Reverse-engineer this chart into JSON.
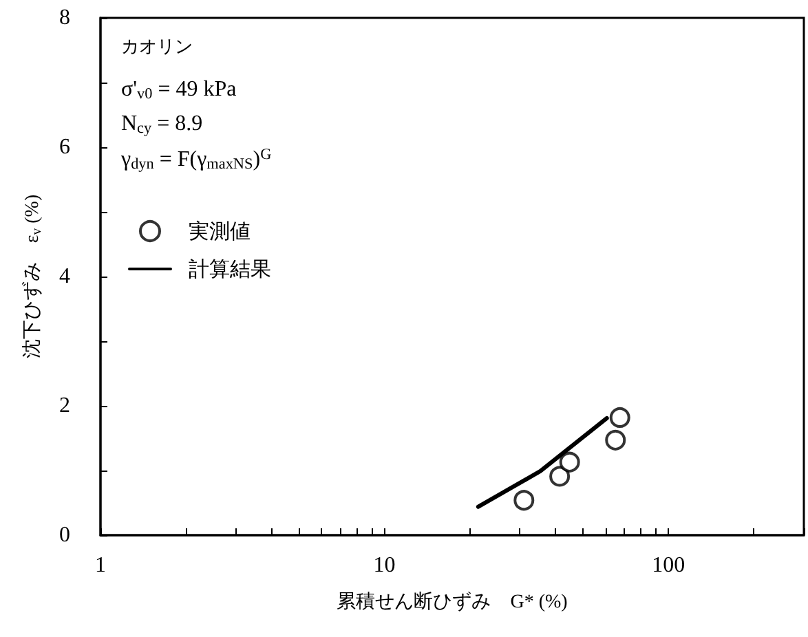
{
  "chart_data": {
    "type": "scatter",
    "xlabel": "累積せん断ひずみ　G* (%)",
    "ylabel": "沈下ひずみ　ε$_{v}$ (%)",
    "annotations": [
      "カオリン",
      "σ'$_{v0}$ = 49 kPa",
      "N$_{cy}$ = 8.9",
      "γ$_{dyn}$ = F(γ$_{maxNS}$)$^{G}$"
    ],
    "log": "x",
    "xlim": [
      1,
      300
    ],
    "xticks": [
      1,
      {
        "value": 2,
        "label": null
      },
      {
        "value": 3,
        "label": null
      },
      {
        "value": 4,
        "label": null
      },
      {
        "value": 5,
        "label": null
      },
      {
        "value": 6,
        "label": null
      },
      {
        "value": 7,
        "label": null
      },
      {
        "value": 8,
        "label": null
      },
      {
        "value": 9,
        "label": null
      },
      10,
      {
        "value": 20,
        "label": null
      },
      {
        "value": 30,
        "label": null
      },
      {
        "value": 40,
        "label": null
      },
      {
        "value": 50,
        "label": null
      },
      {
        "value": 60,
        "label": null
      },
      {
        "value": 70,
        "label": null
      },
      {
        "value": 80,
        "label": null
      },
      {
        "value": 90,
        "label": null
      },
      100,
      {
        "value": 200,
        "label": null
      },
      {
        "value": 300,
        "label": null
      }
    ],
    "ylim": [
      0,
      8
    ],
    "yticks": [
      0,
      {
        "value": 1,
        "label": null
      },
      2,
      {
        "value": 3,
        "label": null
      },
      4,
      {
        "value": 5,
        "label": null
      },
      6,
      {
        "value": 7,
        "label": null
      },
      8
    ],
    "grid": false,
    "legend": "top left",
    "series": [
      {
        "name": "実測値",
        "marker": "circle",
        "color": "#000000",
        "x": [
          31.0,
          41.4,
          44.9,
          65.1,
          67.5
        ],
        "values": [
          0.54,
          0.91,
          1.13,
          1.47,
          1.82
        ]
      },
      {
        "name": "計算結果",
        "type": "line",
        "marker": "none",
        "line_style": "solid",
        "color": "#000000",
        "x": [
          21.4,
          35.4,
          60.7
        ],
        "values": [
          0.44,
          0.99,
          1.81
        ]
      }
    ]
  }
}
